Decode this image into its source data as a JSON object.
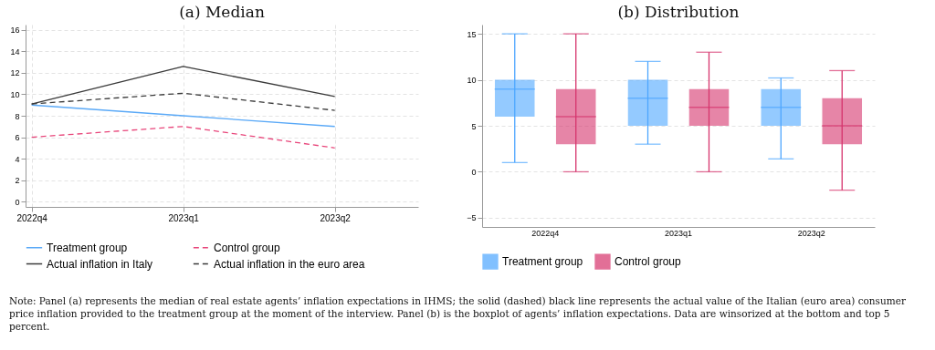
{
  "chart_data": [
    {
      "type": "line",
      "title": "(a) Median",
      "categories": [
        "2022q4",
        "2023q1",
        "2023q2"
      ],
      "series": [
        {
          "name": "Treatment group",
          "color": "#5aa9f7",
          "line_style": "solid",
          "values": [
            9,
            8,
            7
          ]
        },
        {
          "name": "Control group",
          "color": "#e8457a",
          "line_style": "dashed",
          "values": [
            6,
            7,
            5
          ]
        },
        {
          "name": "Actual inflation in Italy",
          "color": "#3a3a3a",
          "line_style": "solid",
          "values": [
            9.1,
            12.6,
            9.8
          ]
        },
        {
          "name": "Actual inflation in the euro area",
          "color": "#3a3a3a",
          "line_style": "dashed",
          "values": [
            9.1,
            10.1,
            8.5
          ]
        }
      ],
      "ylim": [
        -0.5,
        16.5
      ],
      "yticks": [
        0,
        2,
        4,
        6,
        8,
        10,
        12,
        14,
        16
      ],
      "grid": true,
      "legend": "bottom",
      "marker": "none",
      "annotations": [
        "Note: Panel (a) represents the median of real estate agents’ inflation expectations in IHMS; the solid (dashed) black line represents the actual value of the Italian (euro area) consumer price inflation provided to the treatment group at the moment of the interview. Panel (b) is the boxplot of agents’ inflation expectations. Data are winsorized at the bottom and top 5 percent."
      ]
    },
    {
      "type": "box",
      "title": "(b) Distribution",
      "categories": [
        "2022q4",
        "2023q1",
        "2023q2"
      ],
      "series": [
        {
          "name": "Treatment group",
          "color": "#4da6ff",
          "boxes": [
            {
              "low": 1,
              "q1": 6,
              "median": 9,
              "q3": 10,
              "high": 15
            },
            {
              "low": 3,
              "q1": 5,
              "median": 8,
              "q3": 10,
              "high": 12
            },
            {
              "low": 1.4,
              "q1": 5,
              "median": 7,
              "q3": 9,
              "high": 10.2
            }
          ]
        },
        {
          "name": "Control group",
          "color": "#d6336c",
          "boxes": [
            {
              "low": 0,
              "q1": 3,
              "median": 6,
              "q3": 9,
              "high": 15
            },
            {
              "low": 0,
              "q1": 5,
              "median": 7,
              "q3": 9,
              "high": 13
            },
            {
              "low": -2,
              "q1": 3,
              "median": 5,
              "q3": 8,
              "high": 11
            }
          ]
        }
      ],
      "ylim": [
        -6,
        16
      ],
      "yticks": [
        -5,
        0,
        5,
        10,
        15
      ],
      "grid": "y",
      "legend": "bottom"
    }
  ]
}
